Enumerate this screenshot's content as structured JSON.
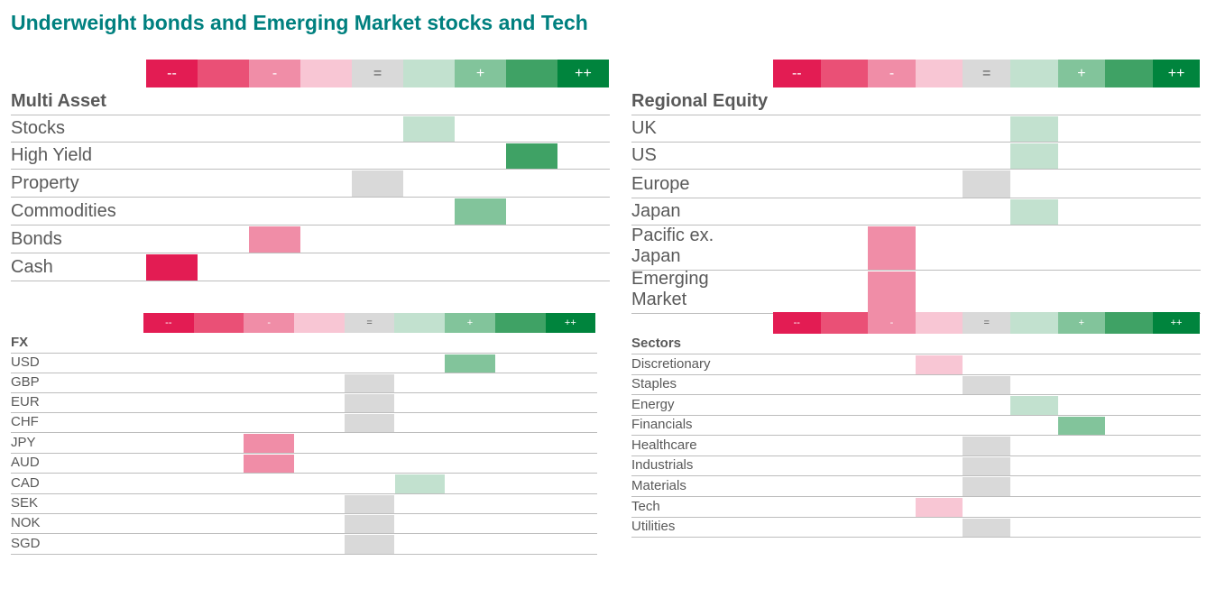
{
  "title": "Underweight bonds and Emerging Market stocks and Tech",
  "scale": [
    {
      "label": "--",
      "color": "#e31c53"
    },
    {
      "label": "",
      "color": "#ea5076"
    },
    {
      "label": "-",
      "color": "#f08da7"
    },
    {
      "label": "",
      "color": "#f8c6d4"
    },
    {
      "label": "=",
      "color": "#d9d9d9"
    },
    {
      "label": "",
      "color": "#c2e1cf"
    },
    {
      "label": "+",
      "color": "#82c49b"
    },
    {
      "label": "",
      "color": "#3fa265"
    },
    {
      "label": "++",
      "color": "#00843d"
    }
  ],
  "chart_data": [
    {
      "type": "table",
      "heading": "Multi Asset",
      "rows": [
        {
          "label": "Stocks",
          "rating": "+"
        },
        {
          "label": "High Yield",
          "rating": "+++"
        },
        {
          "label": "Property",
          "rating": "="
        },
        {
          "label": "Commodities",
          "rating": "++"
        },
        {
          "label": "Bonds",
          "rating": "--"
        },
        {
          "label": "Cash",
          "rating": "----"
        }
      ]
    },
    {
      "type": "table",
      "heading": "Regional Equity",
      "rows": [
        {
          "label": "UK",
          "rating": "+"
        },
        {
          "label": "US",
          "rating": "+"
        },
        {
          "label": "Europe",
          "rating": "="
        },
        {
          "label": "Japan",
          "rating": "+"
        },
        {
          "label": "Pacific ex.\nJapan",
          "rating": "--"
        },
        {
          "label": "Emerging\nMarket",
          "rating": "--"
        }
      ]
    },
    {
      "type": "table",
      "heading": "FX",
      "rows": [
        {
          "label": "USD",
          "rating": "++"
        },
        {
          "label": "GBP",
          "rating": "="
        },
        {
          "label": "EUR",
          "rating": "="
        },
        {
          "label": "CHF",
          "rating": "="
        },
        {
          "label": "JPY",
          "rating": "--"
        },
        {
          "label": "AUD",
          "rating": "--"
        },
        {
          "label": "CAD",
          "rating": "+"
        },
        {
          "label": "SEK",
          "rating": "="
        },
        {
          "label": "NOK",
          "rating": "="
        },
        {
          "label": "SGD",
          "rating": "="
        }
      ]
    },
    {
      "type": "table",
      "heading": "Sectors",
      "rows": [
        {
          "label": "Discretionary",
          "rating": "-"
        },
        {
          "label": "Staples",
          "rating": "="
        },
        {
          "label": "Energy",
          "rating": "+"
        },
        {
          "label": "Financials",
          "rating": "++"
        },
        {
          "label": "Healthcare",
          "rating": "="
        },
        {
          "label": "Industrials",
          "rating": "="
        },
        {
          "label": "Materials",
          "rating": "="
        },
        {
          "label": "Tech",
          "rating": "-"
        },
        {
          "label": "Utilities",
          "rating": "="
        }
      ]
    }
  ]
}
